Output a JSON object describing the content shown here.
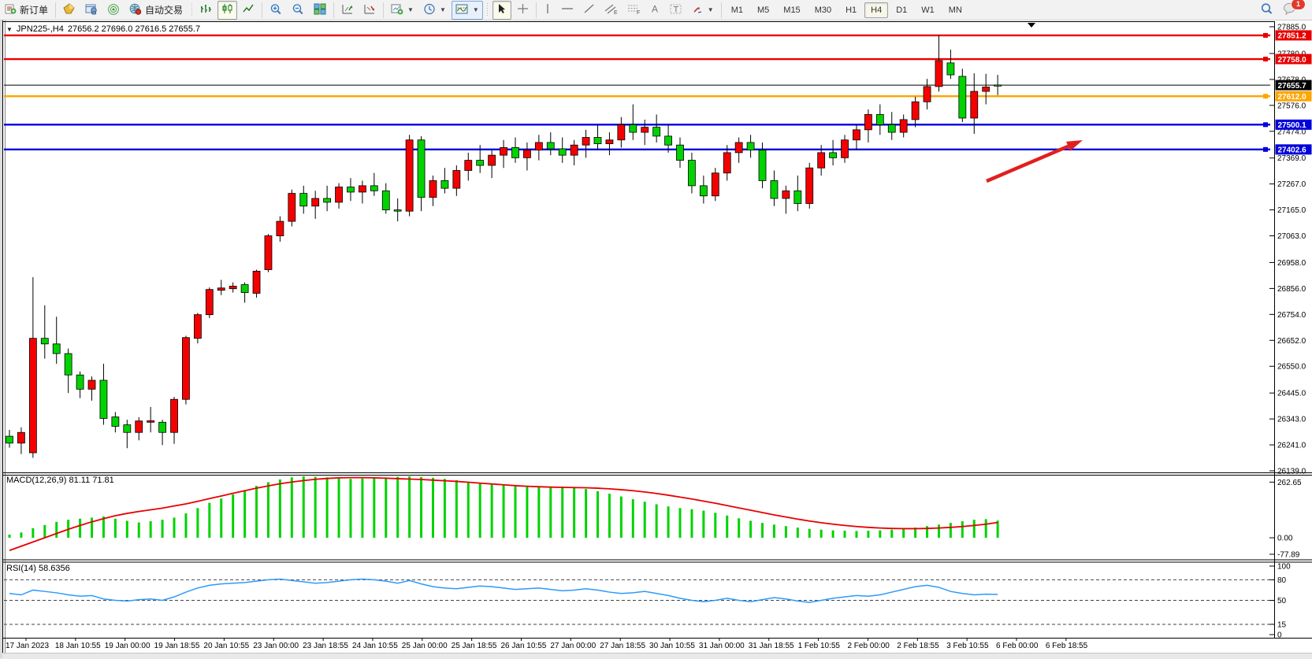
{
  "toolbar": {
    "new_order_label": "新订单",
    "autotrade_label": "自动交易",
    "timeframes": [
      "M1",
      "M5",
      "M15",
      "M30",
      "H1",
      "H4",
      "D1",
      "W1",
      "MN"
    ],
    "active_timeframe": "H4",
    "notification_badge": "1"
  },
  "chart": {
    "title_symbol": "JPN225-,H4",
    "title_ohlc": "27656.2 27696.0 27616.5 27655.7"
  },
  "chart_data": {
    "type": "candlestick",
    "symbol": "JPN225-",
    "timeframe": "H4",
    "title": "JPN225-,H4 27656.2 27696.0 27616.5 27655.7",
    "last_bar": {
      "open": 27656.2,
      "high": 27696.0,
      "low": 27616.5,
      "close": 27655.7
    },
    "colors": {
      "bull": "#f40000",
      "bear": "#00d300",
      "wick": "#000000",
      "macd_histogram": "#00d300",
      "macd_signal": "#e80000",
      "rsi_line": "#2e9afa",
      "level_red": "#e80000",
      "level_orange": "#ffa500",
      "level_blue": "#0000dd",
      "current_price_line": "#000000"
    },
    "price_axis": {
      "max": 27885.0,
      "min": 26139.0,
      "ticks": [
        "27885.0",
        "27780.0",
        "27678.0",
        "27576.0",
        "27474.0",
        "27369.0",
        "27267.0",
        "27165.0",
        "27063.0",
        "26958.0",
        "26856.0",
        "26754.0",
        "26652.0",
        "26550.0",
        "26445.0",
        "26343.0",
        "26241.0",
        "26139.0"
      ]
    },
    "levels": [
      {
        "price": 27851.2,
        "label": "27851.2",
        "color": "#e80000",
        "marker": true,
        "thin": false
      },
      {
        "price": 27758.0,
        "label": "27758.0",
        "color": "#e80000",
        "marker": true,
        "thin": false
      },
      {
        "price": 27655.7,
        "label": "27655.7",
        "color": "#000000",
        "marker": false,
        "thin": true
      },
      {
        "price": 27612.0,
        "label": "27612.0",
        "color": "#ffa500",
        "marker": true,
        "thin": false
      },
      {
        "price": 27500.1,
        "label": "27500.1",
        "color": "#0000dd",
        "marker": true,
        "thin": false
      },
      {
        "price": 27402.6,
        "label": "27402.6",
        "color": "#0000dd",
        "marker": true,
        "thin": false
      }
    ],
    "candles": [
      [
        26275,
        26300,
        26230,
        26248
      ],
      [
        26248,
        26310,
        26205,
        26290
      ],
      [
        26210,
        26900,
        26190,
        26660
      ],
      [
        26660,
        26790,
        26580,
        26638
      ],
      [
        26638,
        26745,
        26560,
        26600
      ],
      [
        26600,
        26620,
        26445,
        26516
      ],
      [
        26516,
        26530,
        26425,
        26460
      ],
      [
        26460,
        26510,
        26415,
        26495
      ],
      [
        26495,
        26560,
        26320,
        26345
      ],
      [
        26351,
        26370,
        26290,
        26314
      ],
      [
        26320,
        26340,
        26228,
        26290
      ],
      [
        26290,
        26350,
        26259,
        26335
      ],
      [
        26330,
        26390,
        26290,
        26336
      ],
      [
        26330,
        26340,
        26240,
        26290
      ],
      [
        26290,
        26430,
        26245,
        26420
      ],
      [
        26420,
        26670,
        26400,
        26663
      ],
      [
        26660,
        26760,
        26640,
        26753
      ],
      [
        26753,
        26860,
        26740,
        26852
      ],
      [
        26849,
        26890,
        26830,
        26858
      ],
      [
        26855,
        26880,
        26840,
        26865
      ],
      [
        26871,
        26880,
        26800,
        26840
      ],
      [
        26837,
        26930,
        26820,
        26924
      ],
      [
        26930,
        27070,
        26920,
        27063
      ],
      [
        27063,
        27140,
        27040,
        27120
      ],
      [
        27120,
        27245,
        27100,
        27230
      ],
      [
        27230,
        27260,
        27150,
        27180
      ],
      [
        27180,
        27240,
        27130,
        27210
      ],
      [
        27210,
        27260,
        27160,
        27195
      ],
      [
        27195,
        27270,
        27170,
        27255
      ],
      [
        27255,
        27290,
        27200,
        27235
      ],
      [
        27235,
        27280,
        27190,
        27260
      ],
      [
        27260,
        27310,
        27220,
        27240
      ],
      [
        27240,
        27270,
        27150,
        27165
      ],
      [
        27165,
        27210,
        27120,
        27160
      ],
      [
        27160,
        27460,
        27140,
        27440
      ],
      [
        27440,
        27455,
        27160,
        27214
      ],
      [
        27214,
        27300,
        27180,
        27280
      ],
      [
        27280,
        27330,
        27230,
        27250
      ],
      [
        27250,
        27340,
        27220,
        27320
      ],
      [
        27320,
        27390,
        27280,
        27360
      ],
      [
        27360,
        27420,
        27310,
        27340
      ],
      [
        27340,
        27400,
        27290,
        27380
      ],
      [
        27380,
        27440,
        27330,
        27410
      ],
      [
        27410,
        27450,
        27350,
        27370
      ],
      [
        27370,
        27430,
        27320,
        27400
      ],
      [
        27400,
        27460,
        27360,
        27430
      ],
      [
        27430,
        27470,
        27380,
        27405
      ],
      [
        27405,
        27450,
        27350,
        27380
      ],
      [
        27380,
        27440,
        27340,
        27420
      ],
      [
        27420,
        27480,
        27370,
        27450
      ],
      [
        27450,
        27500,
        27400,
        27425
      ],
      [
        27425,
        27470,
        27380,
        27440
      ],
      [
        27440,
        27530,
        27410,
        27500
      ],
      [
        27500,
        27580,
        27440,
        27470
      ],
      [
        27470,
        27520,
        27420,
        27490
      ],
      [
        27490,
        27540,
        27430,
        27455
      ],
      [
        27455,
        27500,
        27390,
        27420
      ],
      [
        27420,
        27450,
        27330,
        27360
      ],
      [
        27360,
        27390,
        27230,
        27260
      ],
      [
        27260,
        27300,
        27190,
        27220
      ],
      [
        27220,
        27330,
        27200,
        27310
      ],
      [
        27310,
        27420,
        27280,
        27390
      ],
      [
        27390,
        27450,
        27350,
        27430
      ],
      [
        27430,
        27460,
        27370,
        27400
      ],
      [
        27400,
        27430,
        27250,
        27280
      ],
      [
        27280,
        27320,
        27180,
        27210
      ],
      [
        27210,
        27260,
        27150,
        27240
      ],
      [
        27240,
        27300,
        27160,
        27190
      ],
      [
        27190,
        27350,
        27170,
        27330
      ],
      [
        27330,
        27420,
        27300,
        27390
      ],
      [
        27390,
        27440,
        27340,
        27370
      ],
      [
        27370,
        27460,
        27350,
        27440
      ],
      [
        27440,
        27500,
        27400,
        27480
      ],
      [
        27480,
        27560,
        27430,
        27540
      ],
      [
        27540,
        27580,
        27460,
        27500
      ],
      [
        27500,
        27550,
        27440,
        27470
      ],
      [
        27470,
        27540,
        27450,
        27520
      ],
      [
        27520,
        27610,
        27490,
        27590
      ],
      [
        27590,
        27680,
        27560,
        27650
      ],
      [
        27650,
        27851.2,
        27630,
        27752
      ],
      [
        27743,
        27795,
        27680,
        27696
      ],
      [
        27690,
        27720,
        27510,
        27526
      ],
      [
        27526,
        27702,
        27464,
        27631
      ],
      [
        27631,
        27700,
        27580,
        27648
      ],
      [
        27656.2,
        27696.0,
        27616.5,
        27655.7
      ]
    ],
    "time_axis": [
      "17 Jan 2023",
      "18 Jan 10:55",
      "19 Jan 00:00",
      "19 Jan 18:55",
      "20 Jan 10:55",
      "23 Jan 00:00",
      "23 Jan 18:55",
      "24 Jan 10:55",
      "25 Jan 00:00",
      "25 Jan 18:55",
      "26 Jan 10:55",
      "27 Jan 00:00",
      "27 Jan 18:55",
      "30 Jan 10:55",
      "31 Jan 00:00",
      "31 Jan 18:55",
      "1 Feb 10:55",
      "2 Feb 00:00",
      "2 Feb 18:55",
      "3 Feb 10:55",
      "6 Feb 00:00",
      "6 Feb 18:55"
    ],
    "macd": {
      "label": "MACD(12,26,9) 81.11 71.81",
      "main_value": 81.11,
      "signal_value": 71.81,
      "ticks": [
        "262.65",
        "0.00",
        "-77.89"
      ],
      "tick_values": [
        262.65,
        0,
        -77.89
      ],
      "histogram": [
        15,
        25,
        45,
        60,
        75,
        85,
        90,
        95,
        100,
        90,
        80,
        72,
        78,
        85,
        95,
        115,
        140,
        165,
        185,
        205,
        225,
        245,
        262,
        275,
        285,
        290,
        288,
        285,
        280,
        278,
        280,
        282,
        285,
        288,
        290,
        287,
        283,
        278,
        272,
        265,
        258,
        252,
        248,
        243,
        240,
        238,
        240,
        242,
        238,
        230,
        220,
        208,
        195,
        182,
        170,
        158,
        148,
        140,
        135,
        128,
        118,
        105,
        92,
        80,
        70,
        62,
        55,
        48,
        42,
        38,
        35,
        33,
        32,
        33,
        35,
        38,
        42,
        48,
        55,
        62,
        70,
        78,
        85,
        88,
        81
      ],
      "signal": [
        -60,
        -40,
        -20,
        0,
        20,
        40,
        58,
        75,
        90,
        104,
        115,
        124,
        132,
        140,
        150,
        160,
        172,
        185,
        197,
        210,
        222,
        234,
        245,
        255,
        263,
        270,
        276,
        280,
        283,
        284,
        284,
        283,
        281,
        279,
        277,
        275,
        272,
        269,
        266,
        262,
        258,
        254,
        250,
        246,
        243,
        241,
        239,
        238,
        237,
        236,
        234,
        231,
        227,
        222,
        216,
        209,
        201,
        192,
        183,
        173,
        163,
        152,
        141,
        130,
        119,
        108,
        98,
        88,
        79,
        71,
        64,
        58,
        53,
        49,
        46,
        44,
        43,
        43,
        44,
        46,
        49,
        53,
        58,
        64,
        72
      ]
    },
    "rsi": {
      "label": "RSI(14) 58.6356",
      "value": 58.6356,
      "ticks": [
        "100",
        "80",
        "50",
        "15",
        "0"
      ],
      "tick_values": [
        100,
        80,
        50,
        15,
        0
      ],
      "dashed_levels": [
        80,
        50,
        15
      ],
      "values": [
        60,
        58,
        65,
        63,
        61,
        58,
        56,
        57,
        52,
        50,
        49,
        51,
        52,
        50,
        55,
        62,
        68,
        72,
        74,
        75,
        76,
        78,
        80,
        81,
        79,
        77,
        75,
        76,
        78,
        80,
        81,
        80,
        78,
        75,
        79,
        74,
        70,
        68,
        67,
        69,
        71,
        70,
        68,
        66,
        67,
        68,
        66,
        64,
        65,
        67,
        65,
        62,
        60,
        61,
        63,
        60,
        57,
        53,
        50,
        48,
        50,
        53,
        50,
        48,
        51,
        54,
        52,
        49,
        47,
        50,
        53,
        55,
        57,
        56,
        58,
        62,
        66,
        70,
        72,
        69,
        63,
        60,
        58,
        59,
        58.6
      ]
    },
    "annotation_arrow": {
      "from": [
        1252,
        230
      ],
      "to": [
        1374,
        178
      ],
      "color": "#e02020"
    }
  }
}
